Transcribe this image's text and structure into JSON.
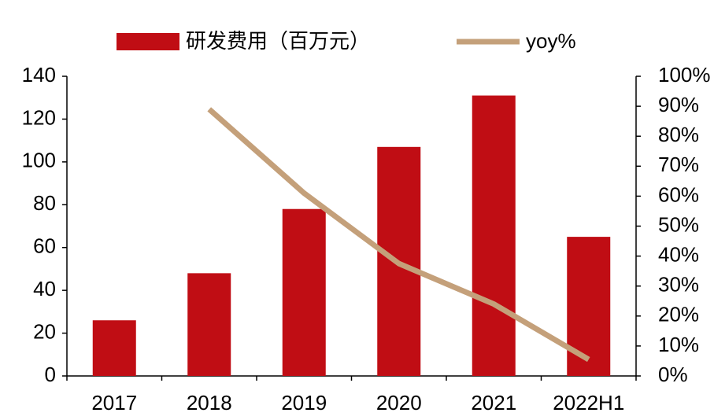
{
  "chart_data": {
    "type": "bar",
    "categories": [
      "2017",
      "2018",
      "2019",
      "2020",
      "2021",
      "2022H1"
    ],
    "series": [
      {
        "name": "研发费用（百万元）",
        "type": "bar",
        "color": "#c00d14",
        "values": [
          26,
          48,
          78,
          107,
          131,
          65
        ]
      },
      {
        "name": "yoy%",
        "type": "line",
        "axis": "y2",
        "color": "#c4a07a",
        "values": [
          null,
          89,
          61,
          37.5,
          24,
          5.5
        ]
      }
    ],
    "ylim": [
      0,
      140
    ],
    "yticks": [
      0,
      20,
      40,
      60,
      80,
      100,
      120,
      140
    ],
    "y2lim": [
      0,
      100
    ],
    "y2ticks": [
      {
        "value": 0,
        "label": "0%"
      },
      {
        "value": 10,
        "label": "10%"
      },
      {
        "value": 20,
        "label": "20%"
      },
      {
        "value": 30,
        "label": "30%"
      },
      {
        "value": 40,
        "label": "40%"
      },
      {
        "value": 50,
        "label": "50%"
      },
      {
        "value": 60,
        "label": "60%"
      },
      {
        "value": 70,
        "label": "70%"
      },
      {
        "value": 80,
        "label": "80%"
      },
      {
        "value": 90,
        "label": "90%"
      },
      {
        "value": 100,
        "label": "100%"
      }
    ]
  }
}
